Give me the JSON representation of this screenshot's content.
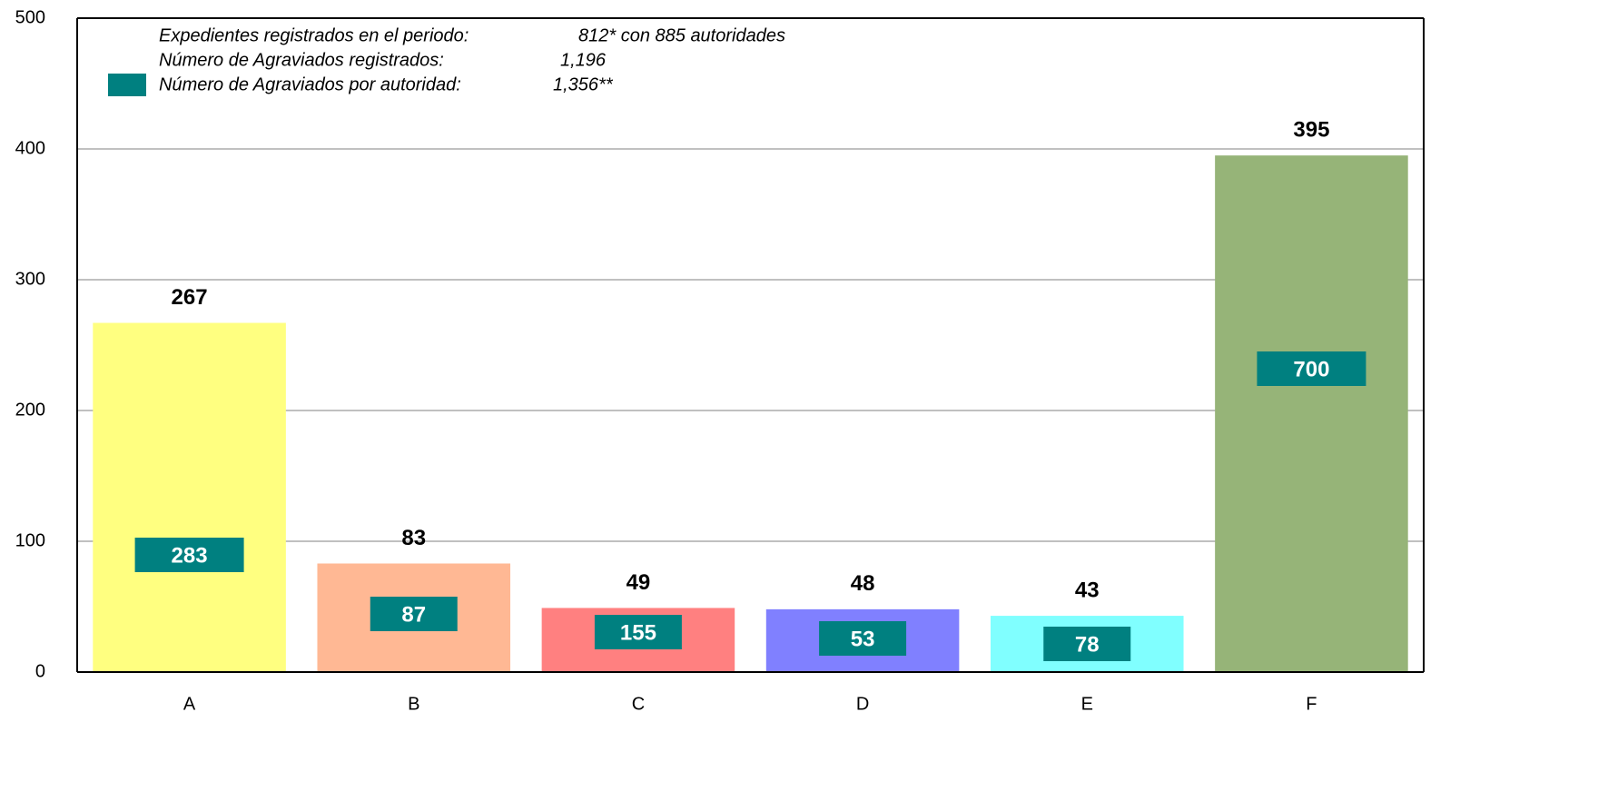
{
  "chart_data": {
    "type": "bar",
    "categories": [
      "A",
      "B",
      "C",
      "D",
      "E",
      "F"
    ],
    "values": [
      267,
      83,
      49,
      48,
      43,
      395
    ],
    "colors": [
      "#ffff80",
      "#ffb894",
      "#ff8080",
      "#8080ff",
      "#80ffff",
      "#96b478"
    ],
    "boxed_labels": {
      "name": "Número de Agraviados por autoridad:",
      "total": "1,356**",
      "color": "#008080",
      "values": [
        283,
        87,
        155,
        53,
        78,
        700
      ]
    },
    "notes": [
      {
        "label": "Expedientes registrados en el periodo:",
        "text": "812* con 885 autoridades"
      },
      {
        "label": "Número de Agraviados registrados:",
        "text": "1,196"
      }
    ],
    "ylim": [
      0,
      500
    ],
    "yticks": [
      0,
      100,
      200,
      300,
      400,
      500
    ],
    "grid": true
  }
}
